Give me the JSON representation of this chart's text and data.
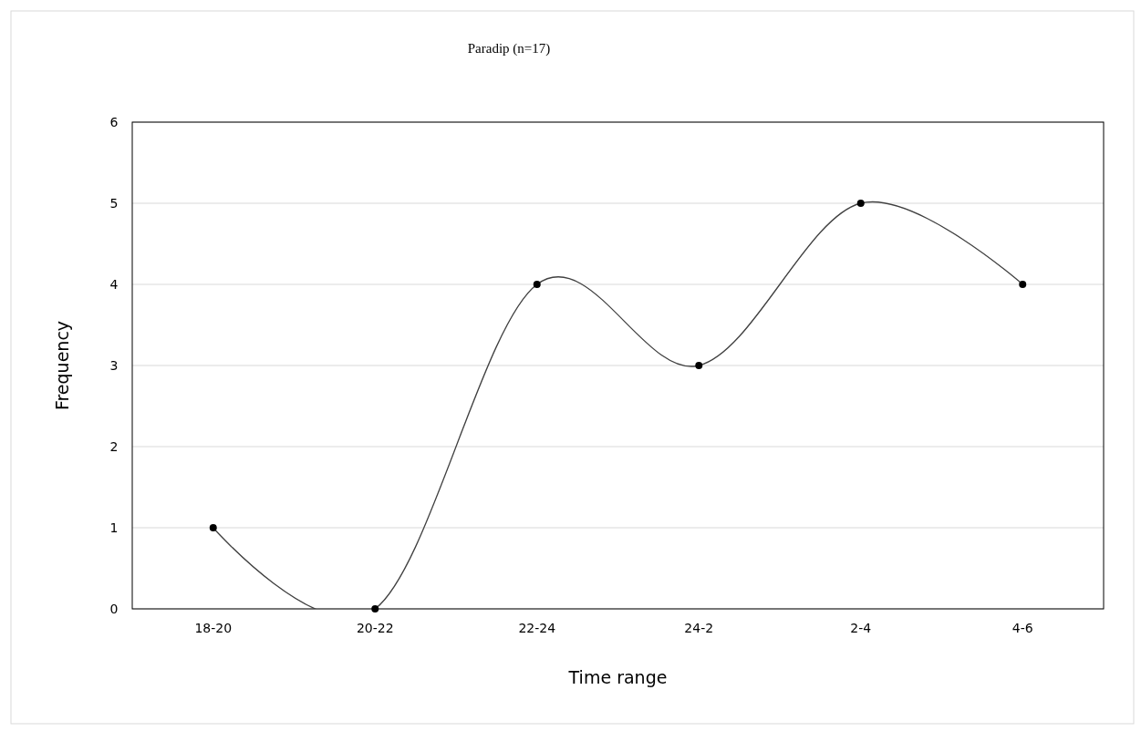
{
  "chart_data": {
    "type": "line",
    "title": "Paradip (n=17)",
    "xlabel": "Time range",
    "ylabel": "Frequency",
    "categories": [
      "18-20",
      "20-22",
      "22-24",
      "24-2",
      "2-4",
      "4-6"
    ],
    "series": [
      {
        "color": "#404040",
        "values": [
          1,
          0,
          4,
          3,
          5,
          4
        ]
      }
    ],
    "ylim": [
      0,
      6
    ],
    "yticks": [
      0,
      1,
      2,
      3,
      4,
      5,
      6
    ],
    "grid": "y",
    "marker": "circle",
    "line_style": "solid"
  }
}
